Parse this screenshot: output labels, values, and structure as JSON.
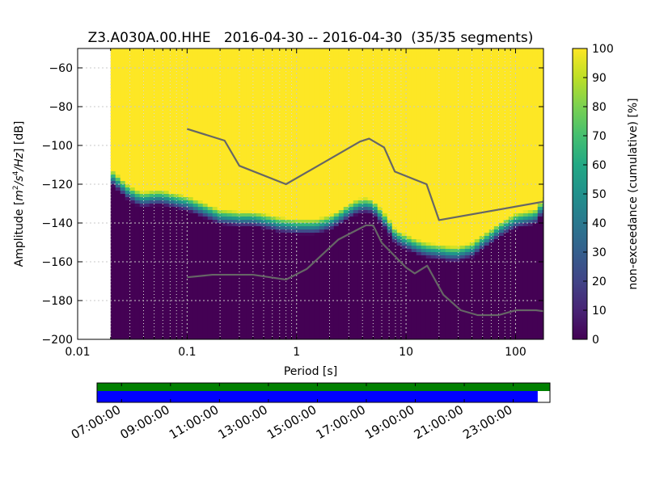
{
  "chart_data": [
    {
      "type": "heatmap",
      "title": "Z3.A030A.00.HHE   2016-04-30 -- 2016-04-30  (35/35 segments)",
      "xlabel": "Period [s]",
      "ylabel": "Amplitude [m²/s⁴/Hz] [dB]",
      "x_scale": "log",
      "xlim": [
        0.01,
        180
      ],
      "ylim": [
        -200,
        -50
      ],
      "x_ticks": [
        {
          "value": 0.01,
          "label": "0.01"
        },
        {
          "value": 0.1,
          "label": "0.1"
        },
        {
          "value": 1,
          "label": "1"
        },
        {
          "value": 10,
          "label": "10"
        },
        {
          "value": 100,
          "label": "100"
        }
      ],
      "y_ticks": [
        {
          "value": -60,
          "label": "−60"
        },
        {
          "value": -80,
          "label": "−80"
        },
        {
          "value": -100,
          "label": "−100"
        },
        {
          "value": -120,
          "label": "−120"
        },
        {
          "value": -140,
          "label": "−140"
        },
        {
          "value": -160,
          "label": "−160"
        },
        {
          "value": -180,
          "label": "−180"
        },
        {
          "value": -200,
          "label": "−200"
        }
      ],
      "grid": true,
      "data_start_period": 0.02,
      "psd_boundary": {
        "x": [
          0.02,
          0.022,
          0.025,
          0.03,
          0.035,
          0.04,
          0.05,
          0.06,
          0.07,
          0.1,
          0.15,
          0.2,
          0.3,
          0.4,
          0.5,
          0.7,
          1.0,
          1.5,
          2.0,
          2.5,
          3.0,
          3.5,
          4.0,
          4.5,
          5.0,
          6.0,
          7.0,
          8.0,
          10,
          12,
          15,
          20,
          25,
          30,
          40,
          50,
          60,
          70,
          80,
          100,
          120,
          150,
          180
        ],
        "y": [
          -116,
          -118,
          -121,
          -125,
          -127,
          -128,
          -127,
          -127,
          -128,
          -130,
          -134,
          -137,
          -138,
          -138,
          -139,
          -141,
          -142,
          -142,
          -140,
          -137,
          -134,
          -132,
          -131,
          -131,
          -132,
          -137,
          -142,
          -147,
          -150,
          -152,
          -154,
          -155,
          -156,
          -156,
          -154,
          -150,
          -147,
          -144,
          -142,
          -139,
          -138,
          -137,
          -131
        ]
      },
      "transition_band_db": 4,
      "reference_curves": [
        {
          "x": [
            0.1,
            0.22,
            0.3,
            0.8,
            3.8,
            4.6,
            6.3,
            7.9,
            15.4,
            20,
            180
          ],
          "y": [
            -91.5,
            -97.5,
            -110.5,
            -120,
            -98,
            -96.5,
            -101,
            -113.5,
            -120,
            -138.5,
            -129
          ]
        },
        {
          "x": [
            0.1,
            0.17,
            0.4,
            0.8,
            1.24,
            2.4,
            4.3,
            5.0,
            6.0,
            10.0,
            12,
            15.6,
            21.9,
            31.6,
            45,
            70,
            101,
            154,
            180
          ],
          "y": [
            -168,
            -166.7,
            -166.7,
            -169.2,
            -163.7,
            -148.6,
            -141.2,
            -141.2,
            -150.2,
            -163,
            -166,
            -162,
            -177,
            -185,
            -187.5,
            -187.5,
            -185,
            -185,
            -185.5
          ]
        }
      ],
      "colorbar": {
        "label": "non-exceedance (cumulative) [%]",
        "range": [
          0,
          100
        ],
        "ticks": [
          "0",
          "10",
          "20",
          "30",
          "40",
          "50",
          "60",
          "70",
          "80",
          "90",
          "100"
        ],
        "colormap": [
          "#440154",
          "#482475",
          "#414487",
          "#355f8d",
          "#2a788e",
          "#21918c",
          "#22a884",
          "#44bf70",
          "#7ad151",
          "#bddf26",
          "#fde725"
        ]
      }
    },
    {
      "type": "timeline",
      "x_tick_labels": [
        "07:00:00",
        "09:00:00",
        "11:00:00",
        "13:00:00",
        "15:00:00",
        "17:00:00",
        "19:00:00",
        "21:00:00",
        "23:00:00"
      ],
      "tick_start_hour": 7,
      "tick_step_hours": 2,
      "time_range_hours": [
        6,
        24.5
      ],
      "rows": [
        {
          "color": "#008000",
          "start_hour": 6,
          "end_hour": 24.5
        },
        {
          "color": "#0000ff",
          "start_hour": 6,
          "end_hour": 24
        }
      ]
    }
  ]
}
